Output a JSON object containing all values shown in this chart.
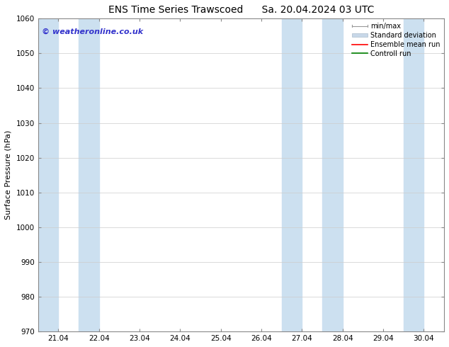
{
  "title_left": "ENS Time Series Trawscoed",
  "title_right": "Sa. 20.04.2024 03 UTC",
  "ylabel": "Surface Pressure (hPa)",
  "ylim": [
    970,
    1060
  ],
  "yticks": [
    970,
    980,
    990,
    1000,
    1010,
    1020,
    1030,
    1040,
    1050,
    1060
  ],
  "xtick_labels": [
    "21.04",
    "22.04",
    "23.04",
    "24.04",
    "25.04",
    "26.04",
    "27.04",
    "28.04",
    "29.04",
    "30.04"
  ],
  "xtick_positions": [
    1,
    2,
    3,
    4,
    5,
    6,
    7,
    8,
    9,
    10
  ],
  "xlim": [
    0.5,
    10.5
  ],
  "shaded_bands": [
    {
      "x_start": 0.5,
      "x_end": 1.0
    },
    {
      "x_start": 1.5,
      "x_end": 2.0
    },
    {
      "x_start": 6.5,
      "x_end": 7.0
    },
    {
      "x_start": 7.5,
      "x_end": 8.0
    },
    {
      "x_start": 9.5,
      "x_end": 10.0
    }
  ],
  "band_color": "#cce0f0",
  "watermark_text": "© weatheronline.co.uk",
  "watermark_color": "#3333cc",
  "watermark_fontsize": 8,
  "legend_entries": [
    {
      "label": "min/max",
      "color": "#aaaaaa",
      "linestyle": "-",
      "linewidth": 1.0
    },
    {
      "label": "Standard deviation",
      "color": "#c8d8e8",
      "linestyle": "-",
      "linewidth": 6
    },
    {
      "label": "Ensemble mean run",
      "color": "red",
      "linestyle": "-",
      "linewidth": 1.2
    },
    {
      "label": "Controll run",
      "color": "green",
      "linestyle": "-",
      "linewidth": 1.2
    }
  ],
  "bg_color": "white",
  "title_fontsize": 10,
  "axis_label_fontsize": 8,
  "tick_fontsize": 7.5
}
